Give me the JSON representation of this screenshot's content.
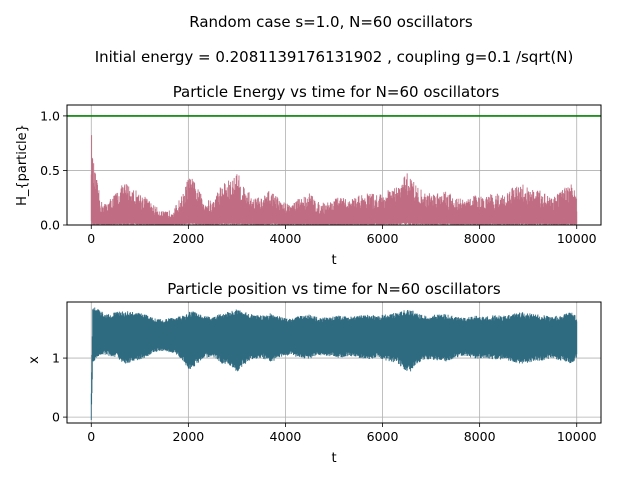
{
  "suptitle_line1": "Random case s=1.0, N=60 oscillators",
  "suptitle_line2": "Initial energy = 0.2081139176131902 , coupling g=0.1 /sqrt(N)",
  "colors": {
    "energy": "#c06c82",
    "position": "#2f6b80",
    "reference": "#008000",
    "grid": "#b0b0b0"
  },
  "chart_data": [
    {
      "type": "line",
      "title": "Particle Energy vs time for N=60 oscillators",
      "xlabel": "t",
      "ylabel": "H_{particle}",
      "xlim": [
        -500,
        10500
      ],
      "ylim": [
        0,
        1.1
      ],
      "xticks": [
        0,
        2000,
        4000,
        6000,
        8000,
        10000
      ],
      "xtick_labels": [
        "0",
        "2000",
        "4000",
        "6000",
        "8000",
        "10000"
      ],
      "yticks": [
        0,
        0.5,
        1.0
      ],
      "ytick_labels": [
        "0.0",
        "0.5",
        "1.0"
      ],
      "grid": true,
      "reference_line": {
        "y": 1.0,
        "color": "#008000"
      },
      "series": [
        {
          "color": "#c06c82",
          "x": [
            0,
            30,
            100,
            200,
            300,
            500,
            700,
            900,
            1100,
            1300,
            1500,
            1700,
            1900,
            2000,
            2100,
            2300,
            2500,
            2700,
            2900,
            3000,
            3100,
            3300,
            3500,
            3700,
            3900,
            4100,
            4300,
            4500,
            4700,
            4900,
            5100,
            5300,
            5500,
            5700,
            5900,
            6100,
            6300,
            6500,
            6600,
            6700,
            6900,
            7100,
            7300,
            7500,
            7700,
            7900,
            8100,
            8300,
            8500,
            8700,
            8900,
            9100,
            9300,
            9500,
            9700,
            9900,
            10000
          ],
          "envelope": [
            0.92,
            0.62,
            0.45,
            0.22,
            0.2,
            0.3,
            0.4,
            0.33,
            0.27,
            0.18,
            0.12,
            0.15,
            0.3,
            0.45,
            0.42,
            0.25,
            0.22,
            0.4,
            0.42,
            0.5,
            0.4,
            0.27,
            0.25,
            0.33,
            0.22,
            0.2,
            0.25,
            0.3,
            0.2,
            0.22,
            0.26,
            0.23,
            0.27,
            0.3,
            0.28,
            0.32,
            0.35,
            0.48,
            0.46,
            0.36,
            0.29,
            0.31,
            0.33,
            0.26,
            0.23,
            0.28,
            0.25,
            0.3,
            0.28,
            0.35,
            0.38,
            0.33,
            0.31,
            0.28,
            0.32,
            0.4,
            0.25
          ]
        }
      ]
    },
    {
      "type": "line",
      "title": "Particle position vs time for N=60 oscillators",
      "xlabel": "t",
      "ylabel": "x",
      "xlim": [
        -500,
        10500
      ],
      "ylim": [
        -0.1,
        1.95
      ],
      "xticks": [
        0,
        2000,
        4000,
        6000,
        8000,
        10000
      ],
      "xtick_labels": [
        "0",
        "2000",
        "4000",
        "6000",
        "8000",
        "10000"
      ],
      "yticks": [
        0,
        1
      ],
      "ytick_labels": [
        "0",
        "1"
      ],
      "grid": true,
      "series": [
        {
          "color": "#2f6b80",
          "x": [
            0,
            30,
            100,
            200,
            300,
            500,
            700,
            900,
            1100,
            1300,
            1500,
            1700,
            1900,
            2000,
            2100,
            2300,
            2500,
            2700,
            2900,
            3000,
            3100,
            3300,
            3500,
            3700,
            3900,
            4100,
            4300,
            4500,
            4700,
            4900,
            5100,
            5300,
            5500,
            5700,
            5900,
            6100,
            6300,
            6500,
            6600,
            6700,
            6900,
            7100,
            7300,
            7500,
            7700,
            7900,
            8100,
            8300,
            8500,
            8700,
            8900,
            9100,
            9300,
            9500,
            9700,
            9900,
            10000
          ],
          "upper": [
            0.4,
            1.9,
            1.85,
            1.8,
            1.75,
            1.78,
            1.8,
            1.78,
            1.75,
            1.68,
            1.65,
            1.7,
            1.72,
            1.78,
            1.8,
            1.72,
            1.7,
            1.76,
            1.8,
            1.83,
            1.8,
            1.75,
            1.72,
            1.76,
            1.7,
            1.68,
            1.72,
            1.74,
            1.68,
            1.7,
            1.72,
            1.7,
            1.72,
            1.74,
            1.72,
            1.75,
            1.77,
            1.83,
            1.82,
            1.76,
            1.72,
            1.74,
            1.75,
            1.7,
            1.68,
            1.72,
            1.7,
            1.73,
            1.72,
            1.76,
            1.78,
            1.75,
            1.73,
            1.7,
            1.74,
            1.78,
            1.7
          ],
          "lower": [
            -0.05,
            0.9,
            1.0,
            1.05,
            1.05,
            1.0,
            0.9,
            0.95,
            1.0,
            1.1,
            1.12,
            1.08,
            0.95,
            0.8,
            0.82,
            1.0,
            1.02,
            0.9,
            0.85,
            0.75,
            0.85,
            0.98,
            1.0,
            0.92,
            1.02,
            1.05,
            1.0,
            0.98,
            1.05,
            1.03,
            1.0,
            1.03,
            1.0,
            0.98,
            1.0,
            0.95,
            0.92,
            0.75,
            0.78,
            0.9,
            0.98,
            0.96,
            0.94,
            1.0,
            1.04,
            0.98,
            1.0,
            0.97,
            0.98,
            0.92,
            0.9,
            0.94,
            0.96,
            1.0,
            0.95,
            0.9,
            1.0
          ]
        }
      ]
    }
  ]
}
